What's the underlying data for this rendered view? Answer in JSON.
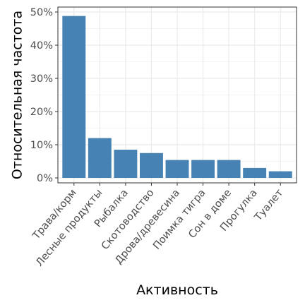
{
  "chart_data": {
    "type": "bar",
    "title": "",
    "xlabel": "Активность",
    "ylabel": "Относительная частота",
    "categories": [
      "Трава/корм",
      "Лесные продукты",
      "Рыбалка",
      "Скотоводство",
      "Дрова/древесина",
      "Поимка тигра",
      "Сон в доме",
      "Прогулка",
      "Туалет"
    ],
    "values": [
      0.488,
      0.12,
      0.085,
      0.075,
      0.054,
      0.054,
      0.054,
      0.03,
      0.02
    ],
    "ylim": [
      0,
      0.5
    ],
    "yticks": [
      0,
      0.1,
      0.2,
      0.3,
      0.4,
      0.5
    ],
    "ytick_labels": [
      "0%",
      "10%",
      "20%",
      "30%",
      "40%",
      "50%"
    ],
    "grid": true,
    "legend": "none",
    "colors": {
      "bar": "#4682b4",
      "grid_major": "#ebebeb",
      "grid_minor": "#f4f4f4",
      "panel_border": "#333333"
    }
  }
}
